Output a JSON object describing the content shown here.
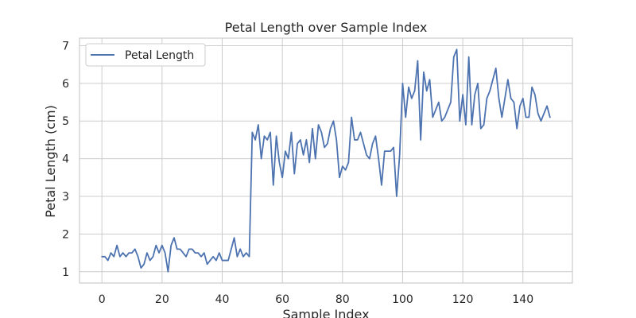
{
  "chart_data": {
    "type": "line",
    "title": "Petal Length over Sample Index",
    "xlabel": "Sample Index",
    "ylabel": "Petal Length (cm)",
    "xlim": [
      -7.45,
      156.45
    ],
    "ylim": [
      0.7,
      7.2
    ],
    "xticks": [
      0,
      20,
      40,
      60,
      80,
      100,
      120,
      140
    ],
    "yticks": [
      1,
      2,
      3,
      4,
      5,
      6,
      7
    ],
    "grid": true,
    "legend_position": "top-left",
    "series": [
      {
        "name": "Petal Length",
        "color": "#4c72b0",
        "y": [
          1.4,
          1.4,
          1.3,
          1.5,
          1.4,
          1.7,
          1.4,
          1.5,
          1.4,
          1.5,
          1.5,
          1.6,
          1.4,
          1.1,
          1.2,
          1.5,
          1.3,
          1.4,
          1.7,
          1.5,
          1.7,
          1.5,
          1.0,
          1.7,
          1.9,
          1.6,
          1.6,
          1.5,
          1.4,
          1.6,
          1.6,
          1.5,
          1.5,
          1.4,
          1.5,
          1.2,
          1.3,
          1.4,
          1.3,
          1.5,
          1.3,
          1.3,
          1.3,
          1.6,
          1.9,
          1.4,
          1.6,
          1.4,
          1.5,
          1.4,
          4.7,
          4.5,
          4.9,
          4.0,
          4.6,
          4.5,
          4.7,
          3.3,
          4.6,
          3.9,
          3.5,
          4.2,
          4.0,
          4.7,
          3.6,
          4.4,
          4.5,
          4.1,
          4.5,
          3.9,
          4.8,
          4.0,
          4.9,
          4.7,
          4.3,
          4.4,
          4.8,
          5.0,
          4.5,
          3.5,
          3.8,
          3.7,
          3.9,
          5.1,
          4.5,
          4.5,
          4.7,
          4.4,
          4.1,
          4.0,
          4.4,
          4.6,
          4.0,
          3.3,
          4.2,
          4.2,
          4.2,
          4.3,
          3.0,
          4.1,
          6.0,
          5.1,
          5.9,
          5.6,
          5.8,
          6.6,
          4.5,
          6.3,
          5.8,
          6.1,
          5.1,
          5.3,
          5.5,
          5.0,
          5.1,
          5.3,
          5.5,
          6.7,
          6.9,
          5.0,
          5.7,
          4.9,
          6.7,
          4.9,
          5.7,
          6.0,
          4.8,
          4.9,
          5.6,
          5.8,
          6.1,
          6.4,
          5.6,
          5.1,
          5.6,
          6.1,
          5.6,
          5.5,
          4.8,
          5.4,
          5.6,
          5.1,
          5.1,
          5.9,
          5.7,
          5.2,
          5.0,
          5.2,
          5.4,
          5.1
        ]
      }
    ]
  }
}
